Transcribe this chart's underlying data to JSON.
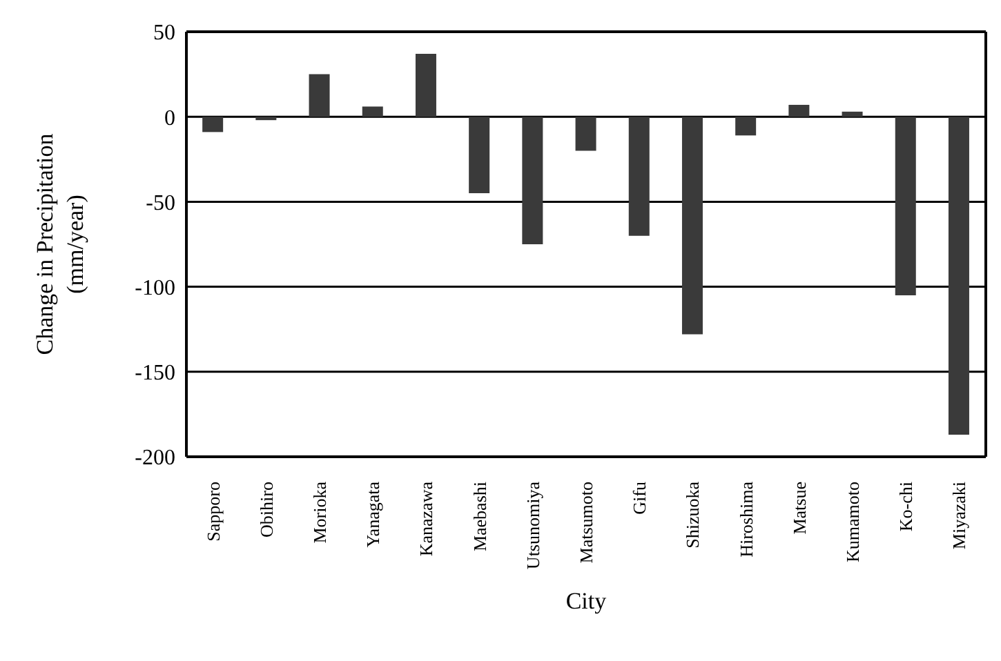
{
  "chart_data": {
    "type": "bar",
    "xlabel": "City",
    "ylabel": "Change in Precipitation (mm/year)",
    "categories": [
      "Sapporo",
      "Obihiro",
      "Morioka",
      "Yanagata",
      "Kanazawa",
      "Maebashi",
      "Utsunomiya",
      "Matsumoto",
      "Gifu",
      "Shizuoka",
      "Hiroshima",
      "Matsue",
      "Kumamoto",
      "Ko-chi",
      "Miyazaki"
    ],
    "values": [
      -9,
      -2,
      25,
      6,
      37,
      -45,
      -75,
      -20,
      -70,
      -128,
      -11,
      7,
      3,
      -105,
      -187
    ],
    "color": "#3a3a3a",
    "ylim": [
      -200,
      50
    ],
    "yticks": [
      -200,
      -150,
      -100,
      -50,
      0,
      50
    ],
    "grid": "y"
  }
}
